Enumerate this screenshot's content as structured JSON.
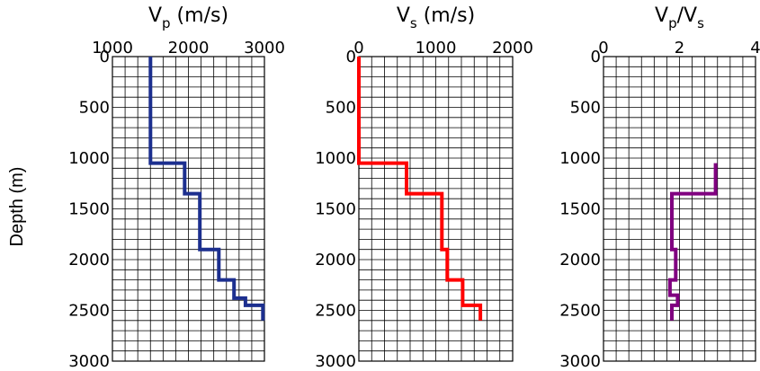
{
  "chart_data": [
    {
      "type": "line",
      "title_main": "V",
      "title_sub": "p",
      "title_rest": " (m/s)",
      "ylabel": "Depth (m)",
      "xlim": [
        1000,
        3000
      ],
      "xticks": [
        "1000",
        "2000",
        "3000"
      ],
      "ylim": [
        0,
        3000
      ],
      "yticks": [
        "0",
        "500",
        "1000",
        "1500",
        "2000",
        "2500",
        "3000"
      ],
      "grid": true,
      "color": "#1c2f8f",
      "series": [
        {
          "depth": [
            0,
            1050,
            1050,
            1350,
            1350,
            1900,
            1900,
            2200,
            2200,
            2380,
            2380,
            2450,
            2450,
            2600
          ],
          "velocity": [
            1500,
            1500,
            1950,
            1950,
            2150,
            2150,
            2400,
            2400,
            2600,
            2600,
            2750,
            2750,
            2980,
            2980
          ]
        }
      ]
    },
    {
      "type": "line",
      "title_main": "V",
      "title_sub": "s",
      "title_rest": " (m/s)",
      "xlim": [
        0,
        2000
      ],
      "xticks": [
        "0",
        "1000",
        "2000"
      ],
      "ylim": [
        0,
        3000
      ],
      "yticks": [
        "0",
        "500",
        "1000",
        "1500",
        "2000",
        "2500",
        "3000"
      ],
      "grid": true,
      "color": "#ff0000",
      "series": [
        {
          "depth": [
            0,
            1050,
            1050,
            1350,
            1350,
            1900,
            1900,
            2200,
            2200,
            2450,
            2450,
            2600
          ],
          "velocity": [
            0,
            0,
            620,
            620,
            1080,
            1080,
            1150,
            1150,
            1350,
            1350,
            1580,
            1580
          ]
        }
      ]
    },
    {
      "type": "line",
      "title_main": "V",
      "title_sub": "p",
      "title_rest": "/V",
      "title_sub2": "s",
      "xlim": [
        0,
        4
      ],
      "xticks": [
        "0",
        "2",
        "4"
      ],
      "ylim": [
        0,
        3000
      ],
      "yticks": [
        "0",
        "500",
        "1000",
        "1500",
        "2000",
        "2500",
        "3000"
      ],
      "grid": true,
      "color": "#800080",
      "series": [
        {
          "depth": [
            1050,
            1350,
            1350,
            1900,
            1900,
            2200,
            2200,
            2350,
            2350,
            2450,
            2450,
            2600
          ],
          "ratio": [
            2.95,
            2.95,
            1.8,
            1.8,
            1.9,
            1.9,
            1.75,
            1.75,
            1.95,
            1.95,
            1.8,
            1.8
          ]
        }
      ]
    }
  ]
}
